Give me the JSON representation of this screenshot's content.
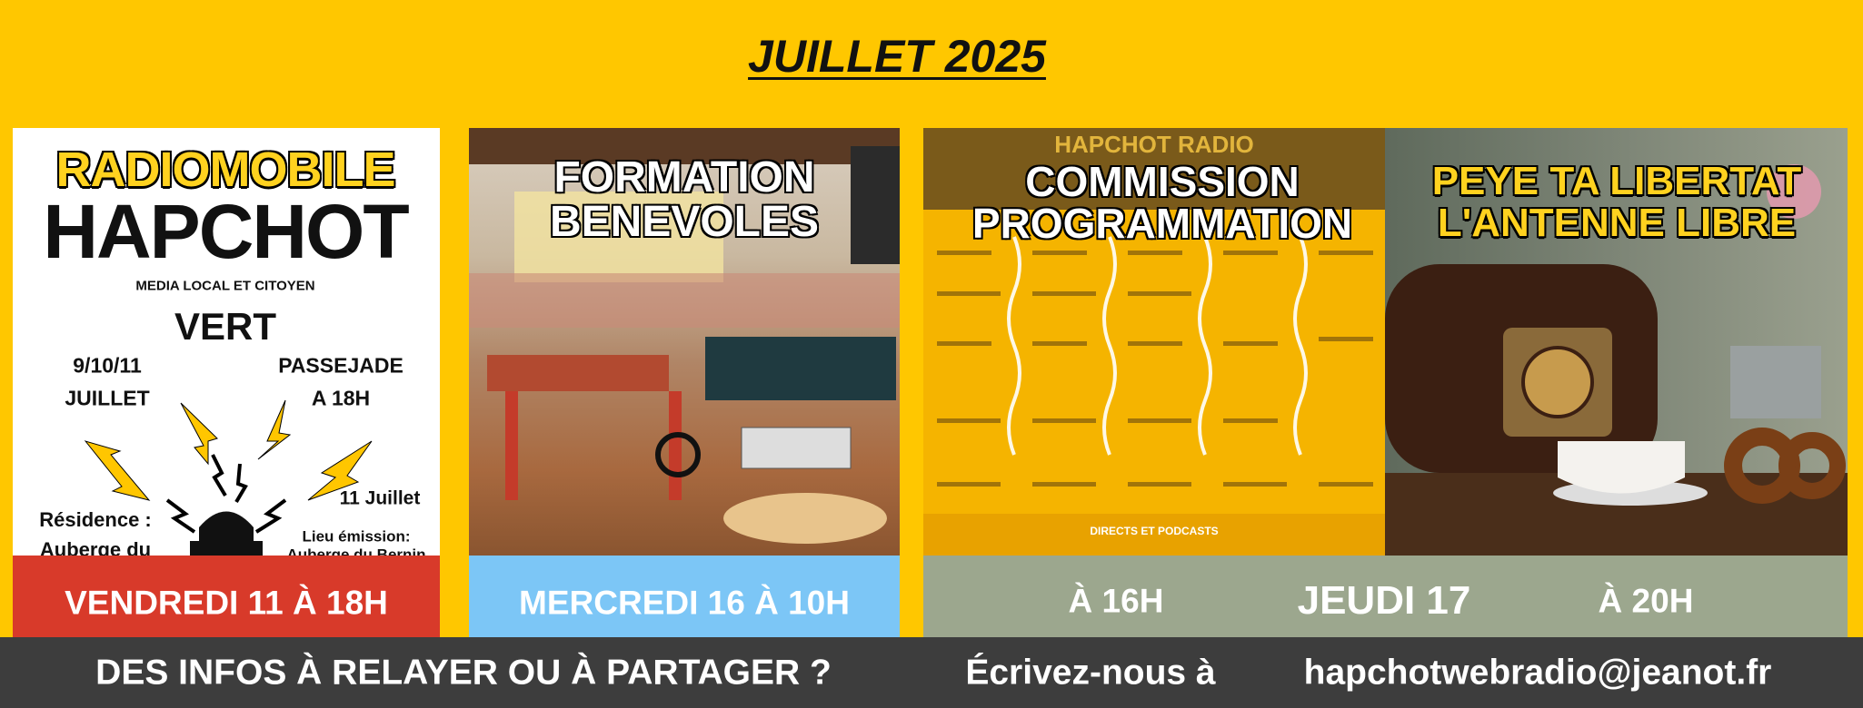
{
  "header": {
    "title": "JUILLET 2025"
  },
  "cards": [
    {
      "poster": {
        "brand_top": "RADIOMOBILE",
        "brand_main": "HAPCHOT",
        "tagline": "MEDIA LOCAL ET CITOYEN",
        "place": "VERT",
        "dates": "9/10/11",
        "month": "JUILLET",
        "event": "PASSEJADE",
        "event_time": "A 18H",
        "broadcast_day": "11 Juillet",
        "residence_label": "Résidence :",
        "residence_value": "Auberge du",
        "venue_label": "Lieu émission:",
        "venue_value": "Auberge du Bernin"
      },
      "banner": "VENDREDI 11 À 18H"
    },
    {
      "image_text": [
        "FORMATION",
        "BENEVOLES"
      ],
      "banner": "MERCREDI 16 À 10H"
    },
    {
      "left_image": {
        "header": "HAPCHOT RADIO",
        "title": [
          "COMMISSION",
          "PROGRAMMATION"
        ],
        "footer": "DIRECTS ET PODCASTS"
      },
      "right_image": {
        "title": [
          "PEYE TA LIBERTAT",
          "L'ANTENNE LIBRE"
        ]
      },
      "banner": {
        "left": "À 16H",
        "center": "JEUDI 17",
        "right": "À 20H"
      }
    }
  ],
  "footer": {
    "question": "DES INFOS À RELAYER OU À PARTAGER ?",
    "invite": "Écrivez-nous à",
    "email": "hapchotwebradio@jeanot.fr"
  }
}
